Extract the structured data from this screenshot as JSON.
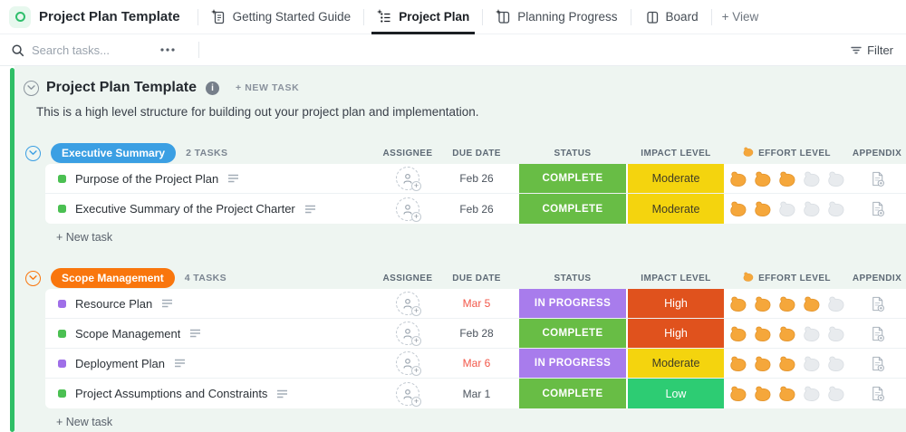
{
  "topbar": {
    "workspace": "Project Plan Template",
    "tabs": [
      {
        "label": "Getting Started Guide",
        "icon": "doc-icon",
        "sparkle": true,
        "active": false
      },
      {
        "label": "Project Plan",
        "icon": "list-icon",
        "sparkle": true,
        "active": true
      },
      {
        "label": "Planning Progress",
        "icon": "board-icon",
        "sparkle": true,
        "active": false
      },
      {
        "label": "Board",
        "icon": "board-icon",
        "sparkle": false,
        "active": false
      }
    ],
    "add_view_label": "+ View"
  },
  "toolbar": {
    "search_placeholder": "Search tasks...",
    "filter_label": "Filter"
  },
  "header": {
    "title": "Project Plan Template",
    "new_task_label": "+ NEW TASK",
    "description": "This is a high level structure for building out your project plan and implementation."
  },
  "columns": [
    "ASSIGNEE",
    "DUE DATE",
    "STATUS",
    "IMPACT LEVEL",
    "EFFORT LEVEL",
    "APPENDIX"
  ],
  "effort_max": 5,
  "add_task_label": "+ New task",
  "groups": [
    {
      "name": "Executive Summary",
      "color": "#3b9fe3",
      "count_label": "2 TASKS",
      "tasks": [
        {
          "name": "Purpose of the Project Plan",
          "marker": "#4bc052",
          "due": "Feb 26",
          "overdue": false,
          "status": "COMPLETE",
          "impact": "Moderate",
          "effort": 3
        },
        {
          "name": "Executive Summary of the Project Charter",
          "marker": "#4bc052",
          "due": "Feb 26",
          "overdue": false,
          "status": "COMPLETE",
          "impact": "Moderate",
          "effort": 2
        }
      ]
    },
    {
      "name": "Scope Management",
      "color": "#f9760d",
      "count_label": "4 TASKS",
      "tasks": [
        {
          "name": "Resource Plan",
          "marker": "#9f6fe8",
          "due": "Mar 5",
          "overdue": true,
          "status": "IN PROGRESS",
          "impact": "High",
          "effort": 4
        },
        {
          "name": "Scope Management",
          "marker": "#4bc052",
          "due": "Feb 28",
          "overdue": false,
          "status": "COMPLETE",
          "impact": "High",
          "effort": 3
        },
        {
          "name": "Deployment Plan",
          "marker": "#9f6fe8",
          "due": "Mar 6",
          "overdue": true,
          "status": "IN PROGRESS",
          "impact": "Moderate",
          "effort": 3
        },
        {
          "name": "Project Assumptions and Constraints",
          "marker": "#4bc052",
          "due": "Mar 1",
          "overdue": false,
          "status": "COMPLETE",
          "impact": "Low",
          "effort": 3
        }
      ]
    }
  ],
  "colors": {
    "status": {
      "COMPLETE": {
        "bg": "#68bd45",
        "fg": "#ffffff"
      },
      "IN PROGRESS": {
        "bg": "#a87cec",
        "fg": "#ffffff"
      }
    },
    "impact": {
      "Moderate": {
        "bg": "#f4d40e",
        "fg": "#403d26"
      },
      "High": {
        "bg": "#e0521d",
        "fg": "#ffffff"
      },
      "Low": {
        "bg": "#2dcc73",
        "fg": "#ffffff"
      }
    },
    "due_normal": "#4b535d",
    "overdue": "#f25749",
    "accent_bar": "#2fbe66",
    "effort_filled": "#f5a73b",
    "effort_filled_stroke": "#e3932a",
    "effort_empty": "#e8ebee",
    "effort_empty_stroke": "#d8dde2"
  }
}
